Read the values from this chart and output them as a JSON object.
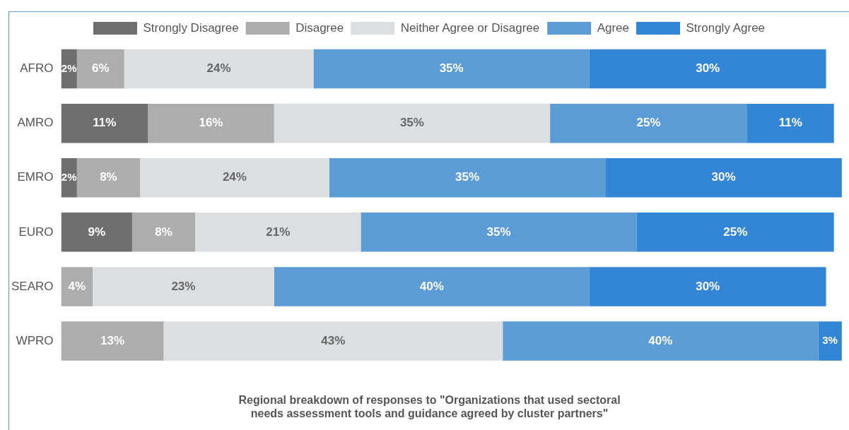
{
  "chart_data": {
    "type": "bar",
    "orientation": "horizontal",
    "stacked": true,
    "title": "Regional breakdown of responses to \"Organizations that used sectoral needs assessment tools and guidance agreed by cluster partners\"",
    "categories": [
      "AFRO",
      "AMRO",
      "EMRO",
      "EURO",
      "SEARO",
      "WPRO"
    ],
    "legend": "top",
    "tick_labels": "y",
    "grid": false,
    "series": [
      {
        "name": "Strongly Disagree",
        "color": "#6e6e6e",
        "values": [
          2,
          11,
          2,
          9,
          null,
          null
        ],
        "value_labels": [
          "2%",
          "11%",
          "2%",
          "9%",
          null,
          null
        ]
      },
      {
        "name": "Disagree",
        "color": "#adadad",
        "values": [
          6,
          16,
          8,
          8,
          4,
          13
        ],
        "value_labels": [
          "6%",
          "16%",
          "8%",
          "8%",
          "4%",
          "13%"
        ]
      },
      {
        "name": "Neither Agree or Disagree",
        "color": "#dcdfe1",
        "values": [
          24,
          35,
          24,
          21,
          23,
          43
        ],
        "value_labels": [
          "24%",
          "35%",
          "24%",
          "21%",
          "23%",
          "43%"
        ]
      },
      {
        "name": "Agree",
        "color": "#5b9bd6",
        "values": [
          35,
          25,
          35,
          35,
          40,
          40
        ],
        "value_labels": [
          "35%",
          "25%",
          "35%",
          "35%",
          "40%",
          "40%"
        ]
      },
      {
        "name": "Strongly Agree",
        "color": "#3386d6",
        "values": [
          30,
          11,
          30,
          25,
          30,
          3
        ],
        "value_labels": [
          "30%",
          "11%",
          "30%",
          "25%",
          "30%",
          "3%"
        ]
      }
    ]
  }
}
